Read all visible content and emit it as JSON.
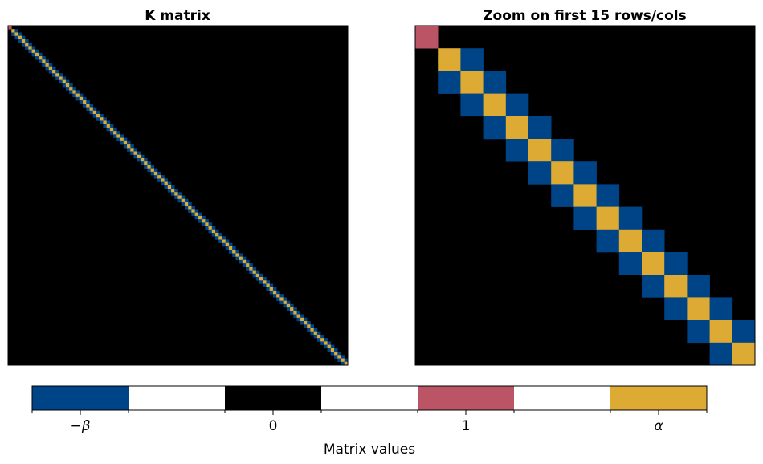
{
  "chart_data": {
    "type": "heatmap",
    "panels": [
      {
        "title": "K matrix",
        "rows": 100,
        "cols": 100
      },
      {
        "title": "Zoom on first 15 rows/cols",
        "rows": 15,
        "cols": 15
      }
    ],
    "matrix": {
      "size": 100,
      "description_values": {
        "K[0][0]": "1",
        "K[i][i], i>=1": "alpha",
        "K[i][i+1], K[i+1][i], i>=1": "-beta",
        "other": "0"
      }
    },
    "colorbar": {
      "label": "Matrix values",
      "segments": [
        {
          "value": "-beta",
          "color": "#004488",
          "tick": "−β"
        },
        {
          "value": null,
          "color": "#ffffff",
          "tick": ""
        },
        {
          "value": "0",
          "color": "#000000",
          "tick": "0"
        },
        {
          "value": null,
          "color": "#ffffff",
          "tick": ""
        },
        {
          "value": "1",
          "color": "#BB5566",
          "tick": "1"
        },
        {
          "value": null,
          "color": "#ffffff",
          "tick": ""
        },
        {
          "value": "alpha",
          "color": "#DDAA33",
          "tick": "α"
        }
      ]
    },
    "colors": {
      "alpha": "#DDAA33",
      "beta": "#004488",
      "one": "#BB5566",
      "zero": "#000000"
    }
  }
}
